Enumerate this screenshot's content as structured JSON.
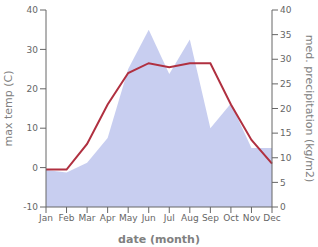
{
  "chart_data": {
    "type": "line",
    "categories": [
      "Jan",
      "Feb",
      "Mar",
      "Apr",
      "May",
      "Jun",
      "Jul",
      "Aug",
      "Sep",
      "Oct",
      "Nov",
      "Dec"
    ],
    "series": [
      {
        "type": "area",
        "axis": "y2",
        "color": "#aab4e8",
        "values": [
          7.5,
          7.0,
          9.0,
          14.0,
          28.0,
          36.0,
          27.0,
          34.0,
          16.0,
          21.0,
          12.0,
          12.0
        ]
      },
      {
        "type": "line",
        "color": "#b03040",
        "values": [
          -0.5,
          -0.5,
          6.0,
          16.0,
          24.0,
          26.5,
          25.5,
          26.5,
          26.5,
          16.0,
          7.0,
          1.0
        ]
      }
    ],
    "xlabel": "date (month)",
    "ylabel": "max temp (C)",
    "y2label": "med. precipitation (kg/m2)",
    "ylim": [
      -10,
      40
    ],
    "yticks": [
      -10,
      0,
      10,
      20,
      30,
      40
    ],
    "y2lim": [
      0,
      40
    ],
    "y2ticks": [
      0,
      5,
      10,
      15,
      20,
      25,
      30,
      35,
      40
    ],
    "grid": false
  }
}
